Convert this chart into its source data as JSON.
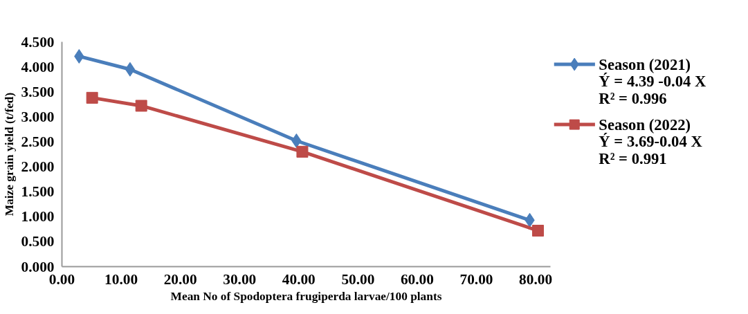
{
  "chart_data": {
    "type": "line",
    "xlabel": "Mean No of Spodoptera frugiperda larvae/100 plants",
    "ylabel": "Maize grain yield (t/fed)",
    "xlim": [
      0,
      82.5
    ],
    "ylim": [
      0,
      4.5
    ],
    "xticks": [
      {
        "value": 0,
        "label": "0.00"
      },
      {
        "value": 10,
        "label": "10.00"
      },
      {
        "value": 20,
        "label": "20.00"
      },
      {
        "value": 30,
        "label": "30.00"
      },
      {
        "value": 40,
        "label": "40.00"
      },
      {
        "value": 50,
        "label": "50.00"
      },
      {
        "value": 60,
        "label": "60.00"
      },
      {
        "value": 70,
        "label": "70.00"
      },
      {
        "value": 80,
        "label": "80.00"
      }
    ],
    "yticks": [
      {
        "value": 0,
        "label": "0.000"
      },
      {
        "value": 0.5,
        "label": "0.500"
      },
      {
        "value": 1,
        "label": "1.000"
      },
      {
        "value": 1.5,
        "label": "1.500"
      },
      {
        "value": 2,
        "label": "2.000"
      },
      {
        "value": 2.5,
        "label": "2.500"
      },
      {
        "value": 3,
        "label": "3.000"
      },
      {
        "value": 3.5,
        "label": "3.500"
      },
      {
        "value": 4,
        "label": "4.000"
      },
      {
        "value": 4.5,
        "label": "4.500"
      }
    ],
    "series": [
      {
        "name": "Season (2021)",
        "color": "#4a7ebb",
        "marker": "diamond",
        "x": [
          2.9,
          11.5,
          39.6,
          79.0
        ],
        "values": [
          4.21,
          3.95,
          2.52,
          0.93
        ]
      },
      {
        "name": "Season (2022)",
        "color": "#be4b48",
        "marker": "square",
        "x": [
          5.1,
          13.4,
          40.6,
          80.4
        ],
        "values": [
          3.38,
          3.22,
          2.3,
          0.72
        ]
      }
    ],
    "annotations": [
      "Ý = 4.39 -0.04 X",
      "R² = 0.996",
      "Ý = 3.69-0.04 X",
      "R² = 0.991"
    ],
    "legend": "right",
    "grid": false,
    "line_style": "solid"
  }
}
